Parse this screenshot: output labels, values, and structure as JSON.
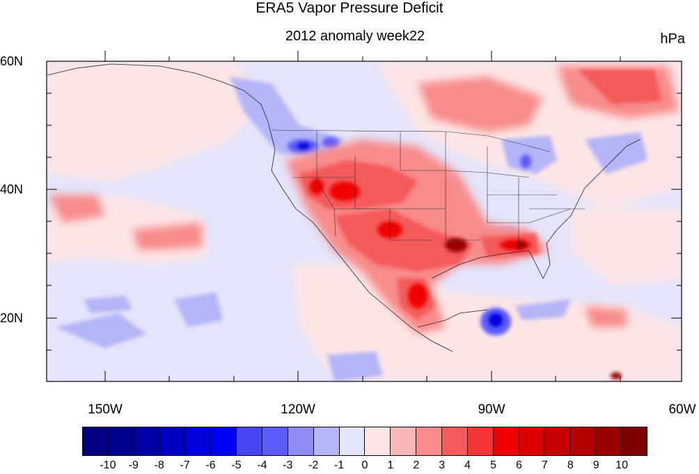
{
  "title": "ERA5 Vapor Pressure Deficit",
  "subtitle": "2012 anomaly week22",
  "units": "hPa",
  "map": {
    "projection": "cylindrical equidistant",
    "lon_range": [
      -159,
      -60
    ],
    "lat_range": [
      10,
      60
    ],
    "lat_labels": [
      "60N",
      "40N",
      "20N"
    ],
    "lon_labels": [
      "150W",
      "120W",
      "90W",
      "60W"
    ],
    "background_fill": "#e4e4fb"
  },
  "colorbar": {
    "labels": [
      "-10",
      "-9",
      "-8",
      "-7",
      "-6",
      "-5",
      "-4",
      "-3",
      "-2",
      "-1",
      "0",
      "1",
      "2",
      "3",
      "4",
      "5",
      "6",
      "7",
      "8",
      "9",
      "10"
    ],
    "colors": [
      "#000080",
      "#00008e",
      "#0000a8",
      "#0000c2",
      "#0000dc",
      "#0000f6",
      "#4646f4",
      "#5c5cff",
      "#8c8cf2",
      "#b4b4f8",
      "#e4e4fb",
      "#fde5e5",
      "#fbb6b6",
      "#f88b8b",
      "#f55a5a",
      "#f33434",
      "#f00000",
      "#db0000",
      "#c60000",
      "#b00000",
      "#990000",
      "#7e0000"
    ]
  }
}
